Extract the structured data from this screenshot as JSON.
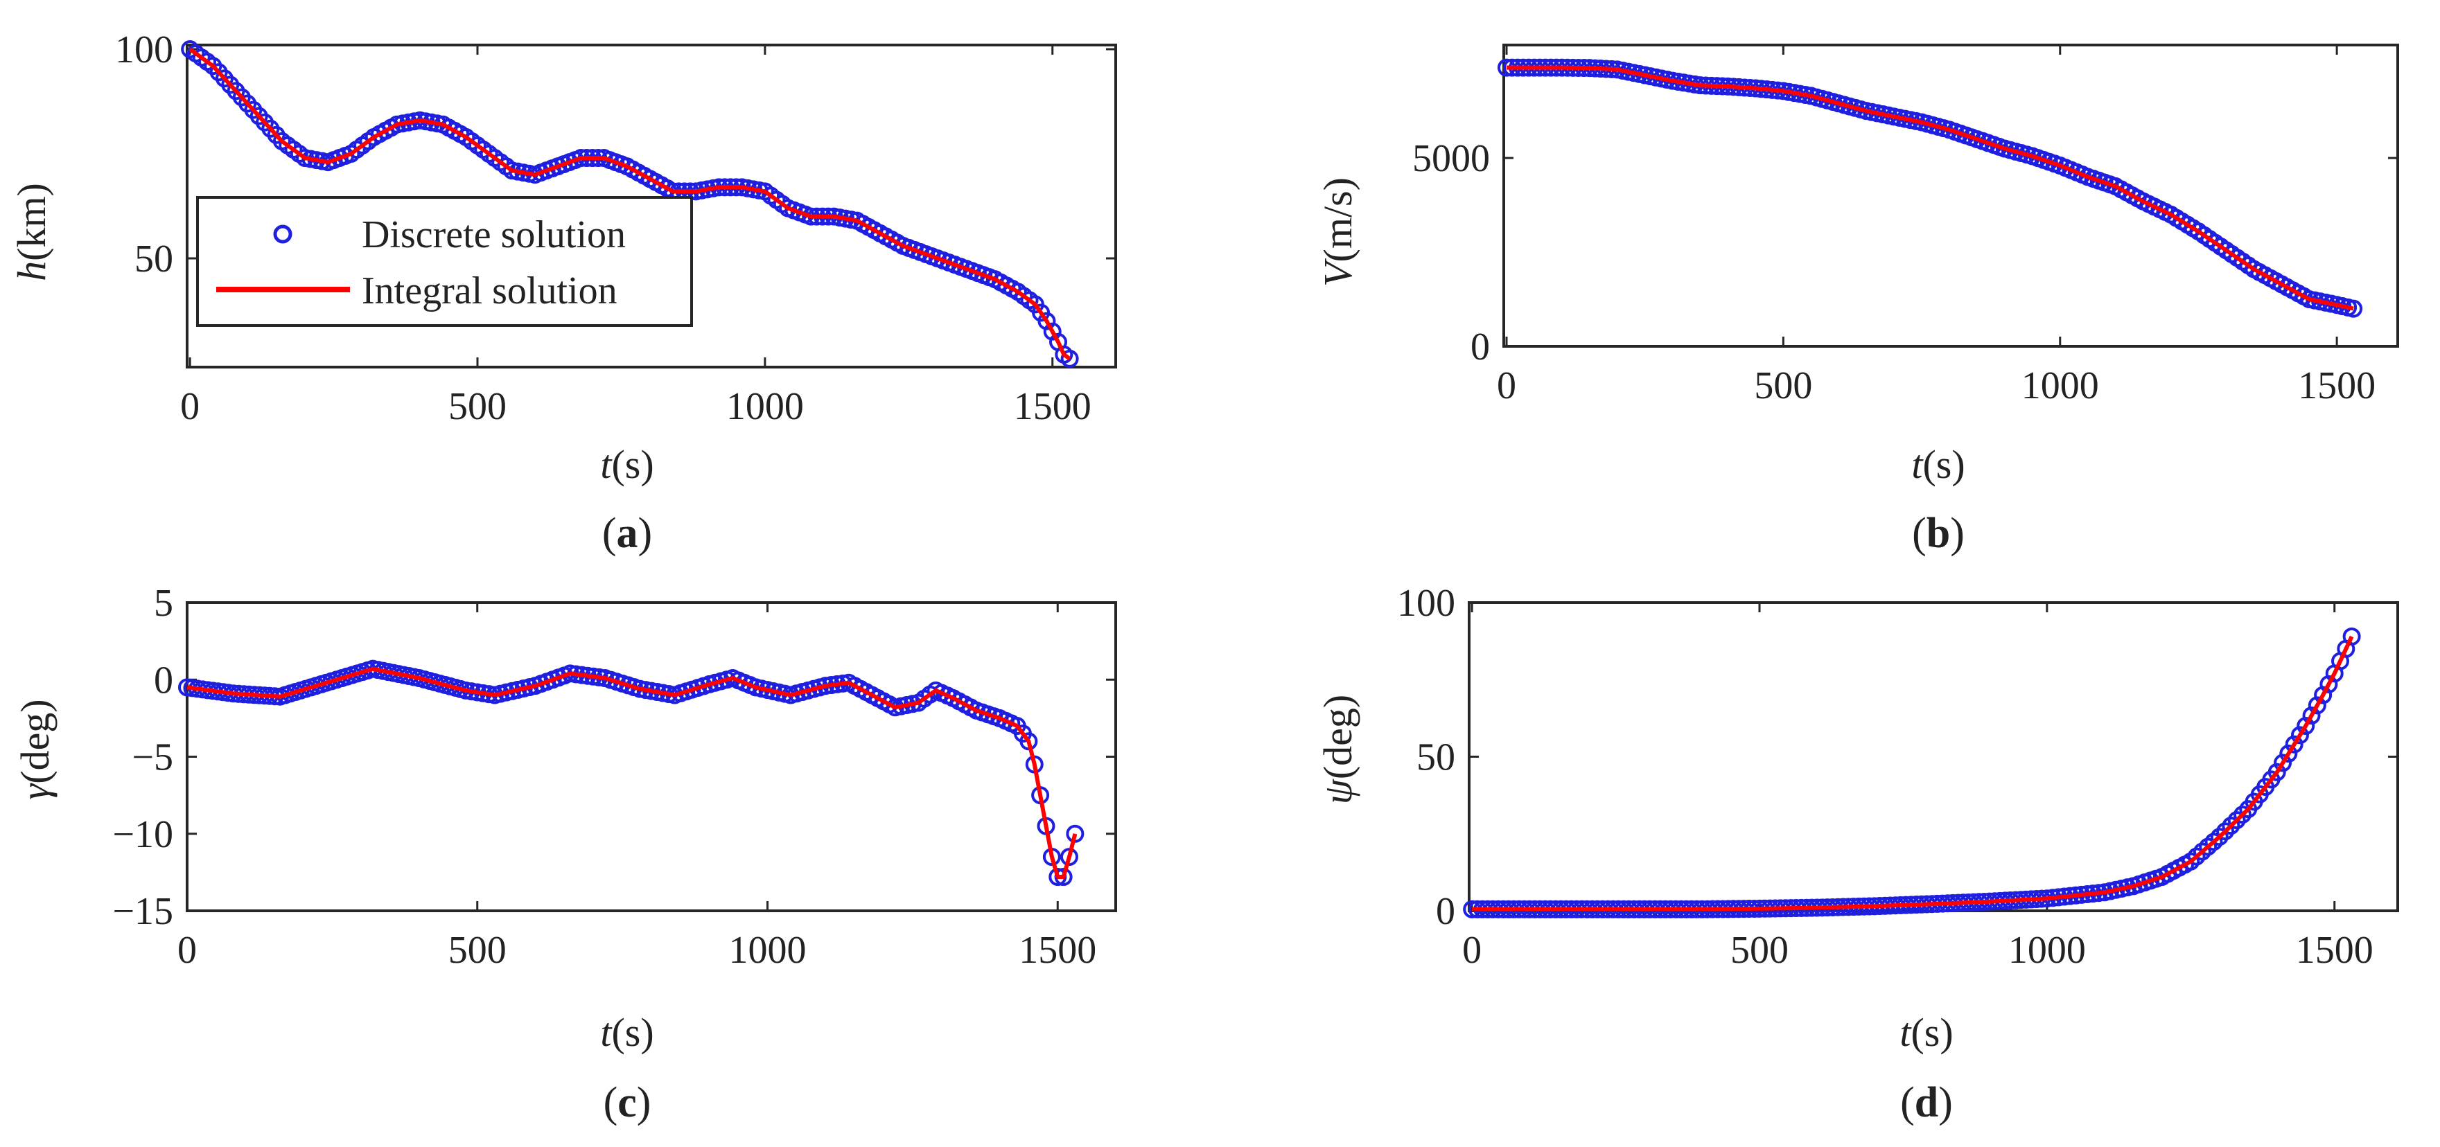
{
  "figure": {
    "legend": {
      "discrete": "Discrete solution",
      "integral": "Integral solution"
    },
    "colors": {
      "discrete": "#1f1fe0",
      "integral": "#ff0000",
      "axis": "#262626"
    }
  },
  "chart_data": [
    {
      "id": "a",
      "type": "line",
      "caption": {
        "open": "(",
        "letter": "a",
        "close": ")"
      },
      "xlabel": {
        "var": "t",
        "unit": "(s)"
      },
      "ylabel": {
        "var": "h",
        "unit": "(km)"
      },
      "xlim": [
        -5,
        1610
      ],
      "ylim": [
        24,
        101
      ],
      "xticks": [
        0,
        500,
        1000,
        1500
      ],
      "xtick_labels": [
        "0",
        "500",
        "1000",
        "1500"
      ],
      "yticks": [
        50,
        100
      ],
      "ytick_labels": [
        "50",
        "100"
      ],
      "legend_position": "lower-left",
      "series": [
        {
          "name": "Discrete solution",
          "style": "markers",
          "x": [
            0,
            40,
            80,
            120,
            160,
            200,
            240,
            280,
            320,
            360,
            400,
            440,
            480,
            520,
            560,
            600,
            640,
            680,
            720,
            760,
            800,
            840,
            880,
            920,
            960,
            1000,
            1040,
            1080,
            1120,
            1160,
            1200,
            1240,
            1280,
            1320,
            1360,
            1400,
            1440,
            1470,
            1490,
            1510,
            1520,
            1530
          ],
          "y": [
            100,
            96,
            90,
            84,
            78,
            74,
            73,
            75,
            79,
            82,
            83,
            82,
            79,
            75,
            71,
            70,
            72,
            74,
            74,
            72,
            69,
            66,
            66,
            67,
            67,
            66,
            62,
            60,
            60,
            59,
            56,
            53,
            51,
            49,
            47,
            45,
            42,
            39,
            35,
            30,
            27,
            26
          ]
        },
        {
          "name": "Integral solution",
          "style": "line",
          "x": [
            0,
            40,
            80,
            120,
            160,
            200,
            240,
            280,
            320,
            360,
            400,
            440,
            480,
            520,
            560,
            600,
            640,
            680,
            720,
            760,
            800,
            840,
            880,
            920,
            960,
            1000,
            1040,
            1080,
            1120,
            1160,
            1200,
            1240,
            1280,
            1320,
            1360,
            1400,
            1440,
            1470,
            1490,
            1510,
            1520,
            1530
          ],
          "y": [
            100,
            96,
            90,
            84,
            78,
            74,
            73,
            75,
            79,
            82,
            83,
            82,
            79,
            75,
            71,
            70,
            72,
            74,
            74,
            72,
            69,
            66,
            66,
            67,
            67,
            66,
            62,
            60,
            60,
            59,
            56,
            53,
            51,
            49,
            47,
            45,
            42,
            39,
            35,
            30,
            27,
            26
          ]
        }
      ]
    },
    {
      "id": "b",
      "type": "line",
      "caption": {
        "open": "(",
        "letter": "b",
        "close": ")"
      },
      "xlabel": {
        "var": "t",
        "unit": "(s)"
      },
      "ylabel": {
        "var": "V",
        "unit": "(m/s)"
      },
      "xlim": [
        -5,
        1610
      ],
      "ylim": [
        0,
        8000
      ],
      "xticks": [
        0,
        500,
        1000,
        1500
      ],
      "xtick_labels": [
        "0",
        "500",
        "1000",
        "1500"
      ],
      "yticks": [
        0,
        5000
      ],
      "ytick_labels": [
        "0",
        "5000"
      ],
      "series": [
        {
          "name": "Discrete solution",
          "style": "markers",
          "x": [
            0,
            50,
            100,
            150,
            200,
            250,
            300,
            350,
            400,
            450,
            500,
            550,
            600,
            650,
            700,
            750,
            800,
            850,
            900,
            950,
            1000,
            1050,
            1100,
            1150,
            1200,
            1250,
            1300,
            1350,
            1400,
            1450,
            1500,
            1530
          ],
          "y": [
            7400,
            7400,
            7400,
            7390,
            7350,
            7200,
            7050,
            6930,
            6900,
            6850,
            6780,
            6650,
            6450,
            6250,
            6100,
            5950,
            5750,
            5500,
            5250,
            5050,
            4800,
            4500,
            4250,
            3850,
            3500,
            3050,
            2550,
            2050,
            1650,
            1250,
            1100,
            1000
          ]
        },
        {
          "name": "Integral solution",
          "style": "line",
          "x": [
            0,
            50,
            100,
            150,
            200,
            250,
            300,
            350,
            400,
            450,
            500,
            550,
            600,
            650,
            700,
            750,
            800,
            850,
            900,
            950,
            1000,
            1050,
            1100,
            1150,
            1200,
            1250,
            1300,
            1350,
            1400,
            1450,
            1500,
            1530
          ],
          "y": [
            7400,
            7400,
            7400,
            7390,
            7350,
            7200,
            7050,
            6930,
            6900,
            6850,
            6780,
            6650,
            6450,
            6250,
            6100,
            5950,
            5750,
            5500,
            5250,
            5050,
            4800,
            4500,
            4250,
            3850,
            3500,
            3050,
            2550,
            2050,
            1650,
            1250,
            1100,
            1000
          ]
        }
      ]
    },
    {
      "id": "c",
      "type": "line",
      "caption": {
        "open": "(",
        "letter": "c",
        "close": ")"
      },
      "xlabel": {
        "var": "t",
        "unit": "(s)"
      },
      "ylabel": {
        "var": "γ",
        "unit": "(deg)"
      },
      "xlim": [
        0,
        1600
      ],
      "ylim": [
        -15,
        5
      ],
      "xticks": [
        0,
        500,
        1000,
        1500
      ],
      "xtick_labels": [
        "0",
        "500",
        "1000",
        "1500"
      ],
      "yticks": [
        -15,
        -10,
        -5,
        0,
        5
      ],
      "ytick_labels": [
        "−15",
        "−10",
        "−5",
        "0",
        "5"
      ],
      "series": [
        {
          "name": "Discrete solution",
          "style": "markers",
          "x": [
            0,
            80,
            160,
            240,
            320,
            400,
            480,
            530,
            600,
            660,
            720,
            780,
            840,
            900,
            940,
            980,
            1040,
            1100,
            1140,
            1180,
            1220,
            1260,
            1290,
            1320,
            1360,
            1400,
            1430,
            1450,
            1460,
            1470,
            1480,
            1490,
            1500,
            1510,
            1520,
            1530
          ],
          "y": [
            -0.5,
            -0.9,
            -1.1,
            -0.2,
            0.7,
            0.1,
            -0.7,
            -1.0,
            -0.4,
            0.4,
            0.1,
            -0.6,
            -1.0,
            -0.3,
            0.1,
            -0.5,
            -1.0,
            -0.4,
            -0.2,
            -1.0,
            -1.8,
            -1.5,
            -0.7,
            -1.2,
            -2.0,
            -2.5,
            -3.0,
            -4.0,
            -5.5,
            -7.5,
            -9.5,
            -11.5,
            -12.8,
            -12.8,
            -11.5,
            -10.0
          ]
        },
        {
          "name": "Integral solution",
          "style": "line",
          "x": [
            0,
            80,
            160,
            240,
            320,
            400,
            480,
            530,
            600,
            660,
            720,
            780,
            840,
            900,
            940,
            980,
            1040,
            1100,
            1140,
            1180,
            1220,
            1260,
            1290,
            1320,
            1360,
            1400,
            1430,
            1450,
            1460,
            1470,
            1480,
            1490,
            1500,
            1510,
            1520,
            1530
          ],
          "y": [
            -0.5,
            -0.9,
            -1.1,
            -0.2,
            0.7,
            0.1,
            -0.7,
            -1.0,
            -0.4,
            0.4,
            0.1,
            -0.6,
            -1.0,
            -0.3,
            0.1,
            -0.5,
            -1.0,
            -0.4,
            -0.2,
            -1.0,
            -1.8,
            -1.5,
            -0.7,
            -1.2,
            -2.0,
            -2.5,
            -3.0,
            -4.0,
            -5.5,
            -7.5,
            -9.5,
            -11.5,
            -12.8,
            -12.8,
            -11.5,
            -10.0
          ]
        }
      ]
    },
    {
      "id": "d",
      "type": "line",
      "caption": {
        "open": "(",
        "letter": "d",
        "close": ")"
      },
      "xlabel": {
        "var": "t",
        "unit": "(s)"
      },
      "ylabel": {
        "var": "ψ",
        "unit": "(deg)"
      },
      "xlim": [
        -5,
        1610
      ],
      "ylim": [
        0,
        100
      ],
      "xticks": [
        0,
        500,
        1000,
        1500
      ],
      "xtick_labels": [
        "0",
        "500",
        "1000",
        "1500"
      ],
      "yticks": [
        0,
        50,
        100
      ],
      "ytick_labels": [
        "0",
        "50",
        "100"
      ],
      "series": [
        {
          "name": "Discrete solution",
          "style": "markers",
          "x": [
            0,
            100,
            200,
            300,
            400,
            500,
            600,
            700,
            800,
            900,
            1000,
            1050,
            1100,
            1150,
            1200,
            1250,
            1300,
            1350,
            1400,
            1450,
            1480,
            1500,
            1520,
            1530
          ],
          "y": [
            0.5,
            0.5,
            0.5,
            0.5,
            0.5,
            0.7,
            1,
            1.5,
            2.2,
            3,
            4,
            5,
            6,
            8,
            11,
            16,
            24,
            33,
            45,
            60,
            70,
            77,
            85,
            89
          ]
        },
        {
          "name": "Integral solution",
          "style": "line",
          "x": [
            0,
            100,
            200,
            300,
            400,
            500,
            600,
            700,
            800,
            900,
            1000,
            1050,
            1100,
            1150,
            1200,
            1250,
            1300,
            1350,
            1400,
            1450,
            1480,
            1500,
            1520,
            1530
          ],
          "y": [
            0.5,
            0.5,
            0.5,
            0.5,
            0.5,
            0.7,
            1,
            1.5,
            2.2,
            3,
            4,
            5,
            6,
            8,
            11,
            16,
            24,
            33,
            45,
            60,
            70,
            77,
            85,
            89
          ]
        }
      ]
    }
  ]
}
